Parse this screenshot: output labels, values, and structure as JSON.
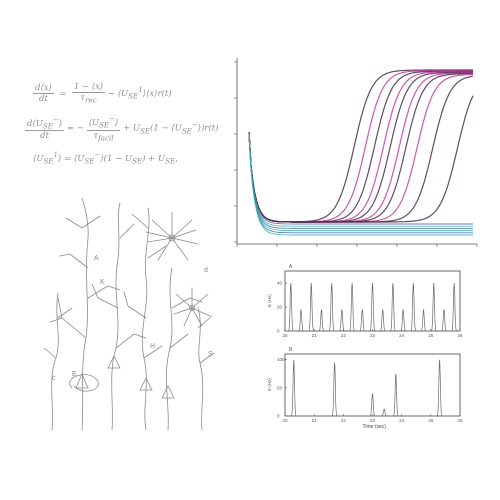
{
  "equations": {
    "eq1": {
      "lhs_num": "d⟨x⟩",
      "lhs_den": "dt",
      "r1_num": "1 − ⟨x⟩",
      "r1_den": "τ",
      "r1_den_sub": "rec",
      "r2": "− ⟨U",
      "r2_sub": "SE",
      "r2_sup": "1",
      "r2_tail": "⟩⟨x⟩r(t)"
    },
    "eq2": {
      "lhs_num": "d⟨U",
      "lhs_num_sub": "SE",
      "lhs_num_sup": "−",
      "lhs_num_tail": "⟩",
      "lhs_den": "dt",
      "r1_num": "⟨U",
      "r1_num_sub": "SE",
      "r1_num_sup": "−",
      "r1_num_tail": "⟩",
      "r1_den": "τ",
      "r1_den_sub": "facil",
      "r1_sign": "= −",
      "r2": "+ U",
      "r2_sub": "SE",
      "r2_mid": "(1 − ⟨U",
      "r2_sub2": "SE",
      "r2_sup2": "−",
      "r2_tail": "⟩)r(t)"
    },
    "eq3": {
      "lhs": "⟨U",
      "lhs_sub": "SE",
      "lhs_sup": "1",
      "lhs_tail": "⟩",
      "rhs": " = ⟨U",
      "rhs_sub": "SE",
      "rhs_sup": "−",
      "rhs_mid": "⟩(1 − U",
      "rhs_sub2": "SE",
      "rhs_mid2": ") + U",
      "rhs_sub3": "SE",
      "rhs_tail": ","
    }
  },
  "neuron_labels": {
    "a": "A",
    "b": "K",
    "c": "d",
    "d": "E",
    "e": "S",
    "f": "H",
    "g": "c"
  },
  "colors": {
    "magenta": "#c43aa6",
    "dark": "#4a2a44",
    "teal": "#2fb9b0",
    "blue": "#5566aa",
    "axis": "#555555",
    "ink": "#8a8a8a",
    "trace": "#6a6a6a"
  },
  "chart_data": [
    {
      "type": "line",
      "title": "",
      "xlabel": "",
      "ylabel": "",
      "grid": false,
      "description_of_series": "many sigmoidal traces: rise after initial decay",
      "series_count": 16
    },
    {
      "type": "line",
      "panel_label": "A",
      "xlabel": "",
      "ylabel": "E (Hz)",
      "x_ticks": [
        "20",
        "21",
        "22",
        "23",
        "24",
        "25",
        "26"
      ],
      "y_ticks": [
        "0",
        "20",
        "40"
      ],
      "xlim": [
        20,
        26
      ],
      "ylim": [
        0,
        50
      ],
      "peak_times": [
        20.2,
        20.55,
        20.9,
        21.25,
        21.6,
        21.95,
        22.3,
        22.65,
        23.0,
        23.35,
        23.7,
        24.05,
        24.4,
        24.75,
        25.1,
        25.45,
        25.8
      ],
      "peak_heights": [
        40,
        18,
        40,
        18,
        40,
        18,
        40,
        18,
        40,
        18,
        40,
        18,
        40,
        18,
        40,
        18,
        40
      ]
    },
    {
      "type": "line",
      "panel_label": "B",
      "xlabel": "Time (sec)",
      "ylabel": "E (Hz)",
      "x_ticks": [
        "20",
        "21",
        "22",
        "23",
        "24",
        "25",
        "26"
      ],
      "y_ticks": [
        "0",
        "50",
        "100"
      ],
      "xlim": [
        20,
        26
      ],
      "ylim": [
        0,
        110
      ],
      "peak_times": [
        20.3,
        21.7,
        23.0,
        23.4,
        23.8,
        25.3
      ],
      "peak_heights": [
        100,
        95,
        40,
        12,
        75,
        100
      ]
    }
  ]
}
